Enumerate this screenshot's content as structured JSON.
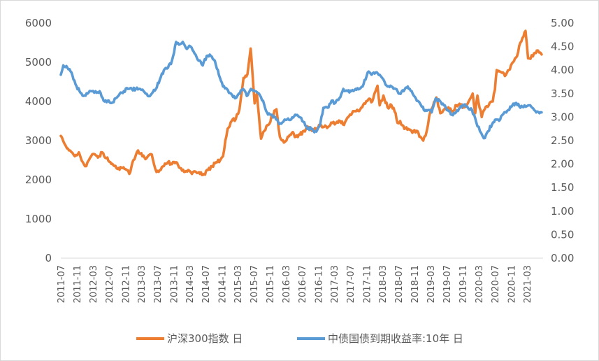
{
  "chart_data": {
    "type": "line",
    "title": "",
    "legend_position": "bottom",
    "grid": false,
    "x_ticks": [
      "2011-07",
      "2011-11",
      "2012-03",
      "2012-07",
      "2012-11",
      "2013-03",
      "2013-07",
      "2013-11",
      "2014-03",
      "2014-07",
      "2014-11",
      "2015-03",
      "2015-07",
      "2015-11",
      "2016-03",
      "2016-07",
      "2016-11",
      "2017-03",
      "2017-07",
      "2017-11",
      "2018-03",
      "2018-07",
      "2018-11",
      "2019-03",
      "2019-07",
      "2019-11",
      "2020-03",
      "2020-07",
      "2020-11",
      "2021-03"
    ],
    "y_left": {
      "range": [
        0,
        6000
      ],
      "ticks": [
        "0",
        "1000",
        "2000",
        "3000",
        "4000",
        "5000",
        "6000"
      ]
    },
    "y_right": {
      "range": [
        0,
        5
      ],
      "ticks": [
        "0.00",
        "0.50",
        "1.00",
        "1.50",
        "2.00",
        "2.50",
        "3.00",
        "3.50",
        "4.00",
        "4.50",
        "5.00"
      ]
    },
    "series": [
      {
        "name": "沪深300指数 日",
        "axis": "left",
        "color": "#ED7D31",
        "points": [
          [
            "2011-07-01",
            3120
          ],
          [
            "2011-08-01",
            2900
          ],
          [
            "2011-09-01",
            2750
          ],
          [
            "2011-10-15",
            2600
          ],
          [
            "2011-11-15",
            2700
          ],
          [
            "2011-12-15",
            2450
          ],
          [
            "2012-01-10",
            2350
          ],
          [
            "2012-02-15",
            2600
          ],
          [
            "2012-03-15",
            2650
          ],
          [
            "2012-04-15",
            2600
          ],
          [
            "2012-05-10",
            2700
          ],
          [
            "2012-06-10",
            2550
          ],
          [
            "2012-07-10",
            2450
          ],
          [
            "2012-08-10",
            2350
          ],
          [
            "2012-09-10",
            2300
          ],
          [
            "2012-10-10",
            2300
          ],
          [
            "2012-11-10",
            2250
          ],
          [
            "2012-12-01",
            2150
          ],
          [
            "2012-12-31",
            2500
          ],
          [
            "2013-02-05",
            2750
          ],
          [
            "2013-03-10",
            2600
          ],
          [
            "2013-04-10",
            2550
          ],
          [
            "2013-05-20",
            2650
          ],
          [
            "2013-06-25",
            2200
          ],
          [
            "2013-07-20",
            2250
          ],
          [
            "2013-08-20",
            2350
          ],
          [
            "2013-09-20",
            2450
          ],
          [
            "2013-10-20",
            2400
          ],
          [
            "2013-11-20",
            2450
          ],
          [
            "2013-12-20",
            2300
          ],
          [
            "2014-01-20",
            2200
          ],
          [
            "2014-02-20",
            2250
          ],
          [
            "2014-03-20",
            2150
          ],
          [
            "2014-04-20",
            2200
          ],
          [
            "2014-05-20",
            2150
          ],
          [
            "2014-06-20",
            2150
          ],
          [
            "2014-07-20",
            2250
          ],
          [
            "2014-08-20",
            2350
          ],
          [
            "2014-09-20",
            2450
          ],
          [
            "2014-10-20",
            2500
          ],
          [
            "2014-11-10",
            2600
          ],
          [
            "2014-11-28",
            3000
          ],
          [
            "2014-12-15",
            3300
          ],
          [
            "2015-01-15",
            3500
          ],
          [
            "2015-02-15",
            3550
          ],
          [
            "2015-03-15",
            3800
          ],
          [
            "2015-04-15",
            4600
          ],
          [
            "2015-05-15",
            4700
          ],
          [
            "2015-06-08",
            5350
          ],
          [
            "2015-06-20",
            4800
          ],
          [
            "2015-07-08",
            3950
          ],
          [
            "2015-07-25",
            4200
          ],
          [
            "2015-08-26",
            3050
          ],
          [
            "2015-09-20",
            3250
          ],
          [
            "2015-10-20",
            3400
          ],
          [
            "2015-11-20",
            3650
          ],
          [
            "2015-12-20",
            3800
          ],
          [
            "2016-01-15",
            3100
          ],
          [
            "2016-02-15",
            2950
          ],
          [
            "2016-03-15",
            3100
          ],
          [
            "2016-04-15",
            3200
          ],
          [
            "2016-05-15",
            3100
          ],
          [
            "2016-06-15",
            3150
          ],
          [
            "2016-07-15",
            3250
          ],
          [
            "2016-08-15",
            3350
          ],
          [
            "2016-09-15",
            3250
          ],
          [
            "2016-10-15",
            3300
          ],
          [
            "2016-11-15",
            3400
          ],
          [
            "2016-12-15",
            3350
          ],
          [
            "2017-01-15",
            3350
          ],
          [
            "2017-02-15",
            3450
          ],
          [
            "2017-03-15",
            3450
          ],
          [
            "2017-04-15",
            3500
          ],
          [
            "2017-05-15",
            3400
          ],
          [
            "2017-06-15",
            3600
          ],
          [
            "2017-07-15",
            3700
          ],
          [
            "2017-08-15",
            3750
          ],
          [
            "2017-09-15",
            3800
          ],
          [
            "2017-10-15",
            3950
          ],
          [
            "2017-11-15",
            4050
          ],
          [
            "2017-12-15",
            4000
          ],
          [
            "2018-01-24",
            4400
          ],
          [
            "2018-02-09",
            3900
          ],
          [
            "2018-03-10",
            4150
          ],
          [
            "2018-04-10",
            3850
          ],
          [
            "2018-05-10",
            3900
          ],
          [
            "2018-06-10",
            3700
          ],
          [
            "2018-06-25",
            3450
          ],
          [
            "2018-07-15",
            3500
          ],
          [
            "2018-08-15",
            3300
          ],
          [
            "2018-09-15",
            3300
          ],
          [
            "2018-10-15",
            3200
          ],
          [
            "2018-11-15",
            3250
          ],
          [
            "2018-12-15",
            3100
          ],
          [
            "2019-01-05",
            3000
          ],
          [
            "2019-02-01",
            3250
          ],
          [
            "2019-03-01",
            3750
          ],
          [
            "2019-04-15",
            4100
          ],
          [
            "2019-05-15",
            3700
          ],
          [
            "2019-06-15",
            3800
          ],
          [
            "2019-07-15",
            3850
          ],
          [
            "2019-08-15",
            3750
          ],
          [
            "2019-09-15",
            3900
          ],
          [
            "2019-10-15",
            3900
          ],
          [
            "2019-11-15",
            3850
          ],
          [
            "2019-12-15",
            4000
          ],
          [
            "2020-01-15",
            4200
          ],
          [
            "2020-02-03",
            3700
          ],
          [
            "2020-02-20",
            4150
          ],
          [
            "2020-03-23",
            3600
          ],
          [
            "2020-04-15",
            3800
          ],
          [
            "2020-05-15",
            3900
          ],
          [
            "2020-06-15",
            4000
          ],
          [
            "2020-07-01",
            4300
          ],
          [
            "2020-07-15",
            4800
          ],
          [
            "2020-08-15",
            4750
          ],
          [
            "2020-09-15",
            4650
          ],
          [
            "2020-10-15",
            4800
          ],
          [
            "2020-11-15",
            5000
          ],
          [
            "2020-12-15",
            5150
          ],
          [
            "2021-01-10",
            5500
          ],
          [
            "2021-02-18",
            5800
          ],
          [
            "2021-03-09",
            5100
          ],
          [
            "2021-04-15",
            5150
          ],
          [
            "2021-05-15",
            5300
          ],
          [
            "2021-06-01",
            5250
          ],
          [
            "2021-06-20",
            5200
          ]
        ]
      },
      {
        "name": "中债国债到期收益率:10年 日",
        "axis": "right",
        "color": "#5B9BD5",
        "points": [
          [
            "2011-07-01",
            3.9
          ],
          [
            "2011-07-20",
            4.1
          ],
          [
            "2011-08-20",
            4.05
          ],
          [
            "2011-09-20",
            3.95
          ],
          [
            "2011-10-20",
            3.7
          ],
          [
            "2011-11-20",
            3.55
          ],
          [
            "2011-12-20",
            3.45
          ],
          [
            "2012-01-20",
            3.5
          ],
          [
            "2012-02-20",
            3.55
          ],
          [
            "2012-03-20",
            3.55
          ],
          [
            "2012-04-20",
            3.55
          ],
          [
            "2012-05-20",
            3.35
          ],
          [
            "2012-06-20",
            3.35
          ],
          [
            "2012-07-20",
            3.3
          ],
          [
            "2012-08-20",
            3.4
          ],
          [
            "2012-09-20",
            3.5
          ],
          [
            "2012-10-20",
            3.55
          ],
          [
            "2012-11-20",
            3.6
          ],
          [
            "2012-12-20",
            3.6
          ],
          [
            "2013-01-20",
            3.6
          ],
          [
            "2013-02-20",
            3.6
          ],
          [
            "2013-03-20",
            3.55
          ],
          [
            "2013-04-20",
            3.45
          ],
          [
            "2013-05-20",
            3.5
          ],
          [
            "2013-06-20",
            3.6
          ],
          [
            "2013-07-20",
            3.8
          ],
          [
            "2013-08-20",
            4.0
          ],
          [
            "2013-09-20",
            4.05
          ],
          [
            "2013-10-20",
            4.2
          ],
          [
            "2013-11-20",
            4.6
          ],
          [
            "2013-12-20",
            4.55
          ],
          [
            "2014-01-10",
            4.6
          ],
          [
            "2014-02-10",
            4.45
          ],
          [
            "2014-03-10",
            4.5
          ],
          [
            "2014-04-10",
            4.35
          ],
          [
            "2014-05-10",
            4.2
          ],
          [
            "2014-06-10",
            4.1
          ],
          [
            "2014-07-10",
            4.3
          ],
          [
            "2014-08-10",
            4.3
          ],
          [
            "2014-09-10",
            4.2
          ],
          [
            "2014-10-10",
            3.9
          ],
          [
            "2014-11-10",
            3.65
          ],
          [
            "2014-12-10",
            3.6
          ],
          [
            "2015-01-10",
            3.5
          ],
          [
            "2015-02-10",
            3.4
          ],
          [
            "2015-03-10",
            3.5
          ],
          [
            "2015-04-10",
            3.6
          ],
          [
            "2015-05-10",
            3.45
          ],
          [
            "2015-06-10",
            3.6
          ],
          [
            "2015-07-10",
            3.55
          ],
          [
            "2015-08-10",
            3.5
          ],
          [
            "2015-09-10",
            3.35
          ],
          [
            "2015-10-10",
            3.1
          ],
          [
            "2015-11-10",
            3.05
          ],
          [
            "2015-12-10",
            3.0
          ],
          [
            "2016-01-10",
            2.85
          ],
          [
            "2016-02-10",
            2.9
          ],
          [
            "2016-03-10",
            2.95
          ],
          [
            "2016-04-10",
            2.95
          ],
          [
            "2016-05-10",
            3.05
          ],
          [
            "2016-06-10",
            3.0
          ],
          [
            "2016-07-10",
            2.9
          ],
          [
            "2016-08-10",
            2.75
          ],
          [
            "2016-09-10",
            2.75
          ],
          [
            "2016-10-10",
            2.7
          ],
          [
            "2016-11-10",
            2.8
          ],
          [
            "2016-12-10",
            3.2
          ],
          [
            "2017-01-10",
            3.2
          ],
          [
            "2017-02-10",
            3.35
          ],
          [
            "2017-03-10",
            3.3
          ],
          [
            "2017-04-10",
            3.4
          ],
          [
            "2017-05-10",
            3.6
          ],
          [
            "2017-06-10",
            3.55
          ],
          [
            "2017-07-10",
            3.55
          ],
          [
            "2017-08-10",
            3.6
          ],
          [
            "2017-09-10",
            3.6
          ],
          [
            "2017-10-10",
            3.7
          ],
          [
            "2017-11-10",
            3.95
          ],
          [
            "2017-12-10",
            3.9
          ],
          [
            "2018-01-10",
            3.95
          ],
          [
            "2018-02-10",
            3.9
          ],
          [
            "2018-03-10",
            3.8
          ],
          [
            "2018-04-10",
            3.65
          ],
          [
            "2018-05-10",
            3.65
          ],
          [
            "2018-06-10",
            3.6
          ],
          [
            "2018-07-10",
            3.5
          ],
          [
            "2018-08-10",
            3.55
          ],
          [
            "2018-09-10",
            3.65
          ],
          [
            "2018-10-10",
            3.55
          ],
          [
            "2018-11-10",
            3.4
          ],
          [
            "2018-12-10",
            3.3
          ],
          [
            "2019-01-10",
            3.15
          ],
          [
            "2019-02-10",
            3.15
          ],
          [
            "2019-03-10",
            3.1
          ],
          [
            "2019-04-10",
            3.4
          ],
          [
            "2019-05-10",
            3.35
          ],
          [
            "2019-06-10",
            3.25
          ],
          [
            "2019-07-10",
            3.15
          ],
          [
            "2019-08-10",
            3.05
          ],
          [
            "2019-09-10",
            3.1
          ],
          [
            "2019-10-10",
            3.2
          ],
          [
            "2019-11-10",
            3.25
          ],
          [
            "2019-12-10",
            3.2
          ],
          [
            "2020-01-10",
            3.15
          ],
          [
            "2020-02-10",
            2.9
          ],
          [
            "2020-03-10",
            2.7
          ],
          [
            "2020-04-08",
            2.55
          ],
          [
            "2020-05-10",
            2.7
          ],
          [
            "2020-06-10",
            2.85
          ],
          [
            "2020-07-10",
            2.95
          ],
          [
            "2020-08-10",
            2.95
          ],
          [
            "2020-09-10",
            3.1
          ],
          [
            "2020-10-10",
            3.15
          ],
          [
            "2020-11-10",
            3.25
          ],
          [
            "2020-12-10",
            3.3
          ],
          [
            "2021-01-10",
            3.2
          ],
          [
            "2021-02-10",
            3.25
          ],
          [
            "2021-03-10",
            3.25
          ],
          [
            "2021-04-10",
            3.2
          ],
          [
            "2021-05-10",
            3.1
          ],
          [
            "2021-06-20",
            3.1
          ]
        ]
      }
    ]
  }
}
